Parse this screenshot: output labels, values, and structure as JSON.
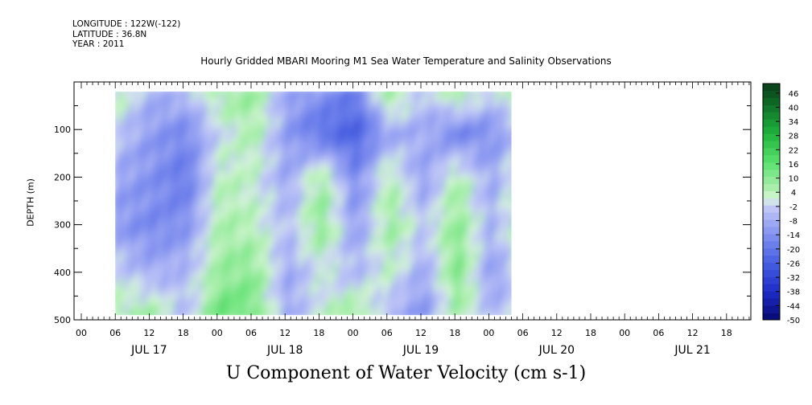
{
  "header": {
    "longitude": "LONGITUDE : 122W(-122)",
    "latitude": "LATITUDE : 36.8N",
    "year": "YEAR : 2011"
  },
  "chart_data": {
    "type": "heatmap",
    "title": "U Component of Water Velocity (cm s-1)",
    "subtitle": "Hourly Gridded MBARI Mooring M1 Sea Water Temperature and Salinity Observations",
    "xlabel": "U Component of Water Velocity (cm s-1)",
    "ylabel": "DEPTH (m)",
    "ylim": [
      500,
      0
    ],
    "y_ticks": [
      100,
      200,
      300,
      400,
      500
    ],
    "x_hour_ticks": [
      "00",
      "06",
      "12",
      "18",
      "00",
      "06",
      "12",
      "18",
      "00",
      "06",
      "12",
      "18",
      "00",
      "06",
      "12",
      "18",
      "00",
      "06",
      "12",
      "18"
    ],
    "x_day_labels": [
      "JUL 17",
      "JUL 18",
      "JUL 19",
      "JUL 20",
      "JUL 21"
    ],
    "data_time_start_hours_after_jul17_00": 6,
    "data_time_end_hours_after_jul17_00": 76,
    "data_depth_range_m": [
      20,
      490
    ],
    "colorbar_labels": [
      46,
      40,
      34,
      28,
      22,
      16,
      10,
      4,
      -2,
      -8,
      -14,
      -20,
      -26,
      -32,
      -38,
      -44,
      -50
    ],
    "colorbar_range": [
      -50,
      50
    ],
    "colorbar_step": 3,
    "colorbar_colors": {
      "max": "#0a3d14",
      "high": "#1fae3c",
      "mid_pos": "#7ee486",
      "near_zero_pos": "#c8f5c8",
      "near_zero_neg": "#c8ccf5",
      "mid_neg": "#8c94ee",
      "low": "#3347d6",
      "min": "#060870"
    },
    "approx_field": {
      "times_hours": [
        6,
        12,
        18,
        24,
        30,
        36,
        42,
        48,
        54,
        60,
        66,
        72,
        76
      ],
      "depths_m": [
        20,
        100,
        200,
        300,
        400,
        490
      ],
      "u_values": [
        [
          4,
          -8,
          -6,
          6,
          8,
          -10,
          -14,
          -20,
          10,
          -6,
          8,
          -4,
          6
        ],
        [
          -4,
          -12,
          -16,
          -2,
          6,
          -12,
          -22,
          -26,
          -10,
          -8,
          -18,
          -14,
          -8
        ],
        [
          -10,
          -14,
          -20,
          4,
          2,
          -10,
          8,
          -16,
          6,
          -12,
          6,
          -10,
          2
        ],
        [
          -12,
          -16,
          -14,
          6,
          4,
          -6,
          10,
          -12,
          8,
          -4,
          10,
          -8,
          4
        ],
        [
          -2,
          -8,
          -6,
          8,
          10,
          -10,
          0,
          -6,
          2,
          -10,
          12,
          -12,
          -4
        ],
        [
          6,
          8,
          -6,
          16,
          12,
          -10,
          2,
          10,
          -8,
          -14,
          6,
          -6,
          -2
        ]
      ]
    }
  }
}
